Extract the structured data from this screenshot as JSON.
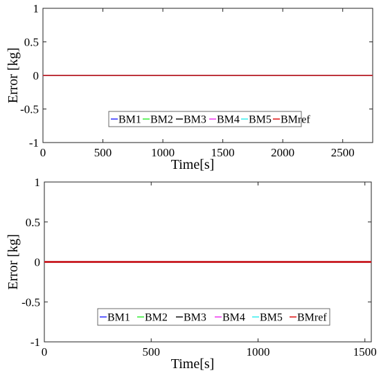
{
  "colors": {
    "BM1": "#2b2bff",
    "BM2": "#33ee33",
    "BM3": "#111111",
    "BM4": "#ee33ee",
    "BM5": "#33eeee",
    "BMref": "#dd1111"
  },
  "chart_data": [
    {
      "type": "line",
      "xlabel": "Time[s]",
      "ylabel": "Error [kg]",
      "xlim": [
        0,
        2750
      ],
      "ylim": [
        -1,
        1
      ],
      "xticks": [
        0,
        500,
        1000,
        1500,
        2000,
        2500
      ],
      "yticks": [
        1,
        0.5,
        0,
        -0.5,
        -1
      ],
      "xtick_labels": [
        "0",
        "500",
        "1000",
        "1500",
        "2000",
        "2500"
      ],
      "ytick_labels": [
        "1",
        "0.5",
        "0",
        "-0.5",
        "-1"
      ],
      "legend": "lower-center",
      "grid": false,
      "series": [
        {
          "name": "BM1",
          "x": [
            0,
            2750
          ],
          "y": [
            0,
            0
          ]
        },
        {
          "name": "BM2",
          "x": [
            0,
            2750
          ],
          "y": [
            0,
            0
          ]
        },
        {
          "name": "BM3",
          "x": [
            0,
            2750
          ],
          "y": [
            0,
            0
          ]
        },
        {
          "name": "BM4",
          "x": [
            0,
            2750
          ],
          "y": [
            0,
            0
          ]
        },
        {
          "name": "BM5",
          "x": [
            0,
            2750
          ],
          "y": [
            0,
            0
          ]
        },
        {
          "name": "BMref",
          "x": [
            0,
            2750
          ],
          "y": [
            0,
            0
          ]
        }
      ]
    },
    {
      "type": "line",
      "xlabel": "Time[s]",
      "ylabel": "Error [kg]",
      "xlim": [
        0,
        1530
      ],
      "ylim": [
        -1,
        1
      ],
      "xticks": [
        0,
        500,
        1000,
        1500
      ],
      "yticks": [
        1,
        0.5,
        0,
        -0.5,
        -1
      ],
      "xtick_labels": [
        "0",
        "500",
        "1000",
        "1500"
      ],
      "ytick_labels": [
        "1",
        "0.5",
        "0",
        "-0.5",
        "-1"
      ],
      "legend": "lower-center",
      "grid": false,
      "series": [
        {
          "name": "BM1",
          "x": [
            0,
            1530
          ],
          "y": [
            0,
            0
          ]
        },
        {
          "name": "BM2",
          "x": [
            0,
            1530
          ],
          "y": [
            0,
            0
          ]
        },
        {
          "name": "BM3",
          "x": [
            0,
            1530
          ],
          "y": [
            0,
            0
          ]
        },
        {
          "name": "BM4",
          "x": [
            0,
            1530
          ],
          "y": [
            0,
            0
          ]
        },
        {
          "name": "BM5",
          "x": [
            0,
            1530
          ],
          "y": [
            0,
            0
          ]
        },
        {
          "name": "BMref",
          "x": [
            0,
            1530
          ],
          "y": [
            0,
            0
          ]
        }
      ]
    }
  ]
}
